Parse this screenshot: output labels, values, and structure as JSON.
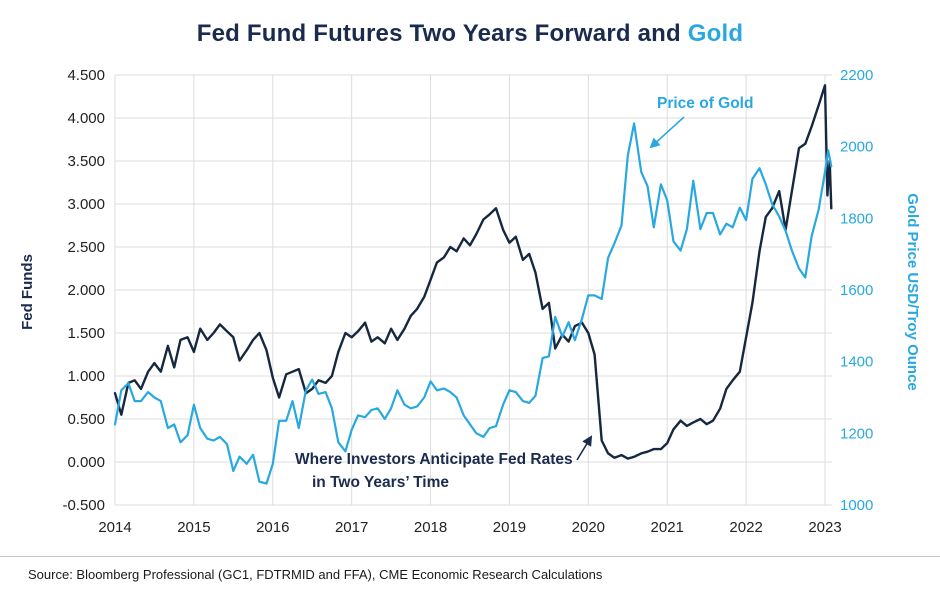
{
  "title": {
    "main": "Fed Fund Futures Two Years Forward and",
    "accent": "Gold"
  },
  "colors": {
    "navy": "#1B2B4D",
    "cyan": "#29A8E0",
    "line_navy": "#16283F",
    "grid": "#DCDCDC",
    "text": "#222222",
    "source_text": "#1A1A1A",
    "divider": "#C9C9C9"
  },
  "source": "Source: Bloomberg Professional (GC1, FDTRMID and FFA), CME Economic Research Calculations",
  "chart_data": {
    "type": "line",
    "title": "Fed Fund Futures Two Years Forward and Gold",
    "grid": true,
    "left_axis": {
      "label": "Fed Funds",
      "min": -0.5,
      "max": 4.5,
      "ticks": [
        "4.500",
        "4.000",
        "3.500",
        "3.000",
        "2.500",
        "2.000",
        "1.500",
        "1.000",
        "0.500",
        "0.000",
        "-0.500"
      ]
    },
    "right_axis": {
      "label": "Gold Price USD/Troy Ounce",
      "min": 1000,
      "max": 2200,
      "ticks": [
        "2200",
        "2000",
        "1800",
        "1600",
        "1400",
        "1200",
        "1000"
      ]
    },
    "x_axis": {
      "min": 2014,
      "max": 2023.1,
      "ticks": [
        "2014",
        "2015",
        "2016",
        "2017",
        "2018",
        "2019",
        "2020",
        "2021",
        "2022",
        "2023"
      ]
    },
    "series": [
      {
        "name": "Fed Fund Futures Two Years Forward (Where Investors Anticipate Fed Rates in Two Years' Time)",
        "axis": "left",
        "color_key": "line_navy",
        "points": [
          [
            2014.0,
            0.8
          ],
          [
            2014.08,
            0.55
          ],
          [
            2014.17,
            0.92
          ],
          [
            2014.25,
            0.95
          ],
          [
            2014.33,
            0.85
          ],
          [
            2014.42,
            1.05
          ],
          [
            2014.5,
            1.15
          ],
          [
            2014.58,
            1.05
          ],
          [
            2014.67,
            1.35
          ],
          [
            2014.75,
            1.1
          ],
          [
            2014.83,
            1.42
          ],
          [
            2014.92,
            1.45
          ],
          [
            2015.0,
            1.28
          ],
          [
            2015.08,
            1.55
          ],
          [
            2015.17,
            1.42
          ],
          [
            2015.25,
            1.5
          ],
          [
            2015.33,
            1.6
          ],
          [
            2015.42,
            1.52
          ],
          [
            2015.5,
            1.45
          ],
          [
            2015.58,
            1.18
          ],
          [
            2015.67,
            1.3
          ],
          [
            2015.75,
            1.42
          ],
          [
            2015.83,
            1.5
          ],
          [
            2015.92,
            1.3
          ],
          [
            2016.0,
            0.98
          ],
          [
            2016.08,
            0.75
          ],
          [
            2016.17,
            1.02
          ],
          [
            2016.25,
            1.05
          ],
          [
            2016.33,
            1.08
          ],
          [
            2016.42,
            0.8
          ],
          [
            2016.5,
            0.85
          ],
          [
            2016.58,
            0.95
          ],
          [
            2016.67,
            0.92
          ],
          [
            2016.75,
            1.0
          ],
          [
            2016.83,
            1.28
          ],
          [
            2016.92,
            1.5
          ],
          [
            2017.0,
            1.45
          ],
          [
            2017.08,
            1.52
          ],
          [
            2017.17,
            1.62
          ],
          [
            2017.25,
            1.4
          ],
          [
            2017.33,
            1.45
          ],
          [
            2017.42,
            1.38
          ],
          [
            2017.5,
            1.55
          ],
          [
            2017.58,
            1.42
          ],
          [
            2017.67,
            1.55
          ],
          [
            2017.75,
            1.7
          ],
          [
            2017.83,
            1.78
          ],
          [
            2017.92,
            1.92
          ],
          [
            2018.0,
            2.12
          ],
          [
            2018.08,
            2.32
          ],
          [
            2018.17,
            2.38
          ],
          [
            2018.25,
            2.5
          ],
          [
            2018.33,
            2.45
          ],
          [
            2018.42,
            2.6
          ],
          [
            2018.5,
            2.52
          ],
          [
            2018.58,
            2.65
          ],
          [
            2018.67,
            2.82
          ],
          [
            2018.75,
            2.88
          ],
          [
            2018.83,
            2.95
          ],
          [
            2018.92,
            2.7
          ],
          [
            2019.0,
            2.55
          ],
          [
            2019.08,
            2.62
          ],
          [
            2019.17,
            2.35
          ],
          [
            2019.25,
            2.42
          ],
          [
            2019.33,
            2.2
          ],
          [
            2019.42,
            1.78
          ],
          [
            2019.5,
            1.85
          ],
          [
            2019.58,
            1.32
          ],
          [
            2019.67,
            1.48
          ],
          [
            2019.75,
            1.4
          ],
          [
            2019.83,
            1.58
          ],
          [
            2019.92,
            1.62
          ],
          [
            2020.0,
            1.5
          ],
          [
            2020.08,
            1.25
          ],
          [
            2020.17,
            0.25
          ],
          [
            2020.25,
            0.1
          ],
          [
            2020.33,
            0.05
          ],
          [
            2020.42,
            0.08
          ],
          [
            2020.5,
            0.04
          ],
          [
            2020.58,
            0.06
          ],
          [
            2020.67,
            0.1
          ],
          [
            2020.75,
            0.12
          ],
          [
            2020.83,
            0.15
          ],
          [
            2020.92,
            0.15
          ],
          [
            2021.0,
            0.22
          ],
          [
            2021.08,
            0.38
          ],
          [
            2021.17,
            0.48
          ],
          [
            2021.25,
            0.42
          ],
          [
            2021.33,
            0.46
          ],
          [
            2021.42,
            0.5
          ],
          [
            2021.5,
            0.44
          ],
          [
            2021.58,
            0.48
          ],
          [
            2021.67,
            0.62
          ],
          [
            2021.75,
            0.85
          ],
          [
            2021.83,
            0.95
          ],
          [
            2021.92,
            1.05
          ],
          [
            2022.0,
            1.45
          ],
          [
            2022.08,
            1.85
          ],
          [
            2022.17,
            2.45
          ],
          [
            2022.25,
            2.85
          ],
          [
            2022.33,
            2.95
          ],
          [
            2022.42,
            3.15
          ],
          [
            2022.5,
            2.7
          ],
          [
            2022.58,
            3.15
          ],
          [
            2022.67,
            3.65
          ],
          [
            2022.75,
            3.7
          ],
          [
            2022.83,
            3.9
          ],
          [
            2022.92,
            4.15
          ],
          [
            2023.0,
            4.38
          ],
          [
            2023.03,
            3.1
          ],
          [
            2023.06,
            3.5
          ],
          [
            2023.08,
            2.95
          ]
        ]
      },
      {
        "name": "Price of Gold",
        "axis": "right",
        "color_key": "cyan",
        "points": [
          [
            2014.0,
            1225
          ],
          [
            2014.08,
            1320
          ],
          [
            2014.17,
            1340
          ],
          [
            2014.25,
            1290
          ],
          [
            2014.33,
            1290
          ],
          [
            2014.42,
            1315
          ],
          [
            2014.5,
            1300
          ],
          [
            2014.58,
            1290
          ],
          [
            2014.67,
            1215
          ],
          [
            2014.75,
            1225
          ],
          [
            2014.83,
            1175
          ],
          [
            2014.92,
            1195
          ],
          [
            2015.0,
            1280
          ],
          [
            2015.08,
            1215
          ],
          [
            2015.17,
            1185
          ],
          [
            2015.25,
            1180
          ],
          [
            2015.33,
            1190
          ],
          [
            2015.42,
            1170
          ],
          [
            2015.5,
            1095
          ],
          [
            2015.58,
            1135
          ],
          [
            2015.67,
            1115
          ],
          [
            2015.75,
            1140
          ],
          [
            2015.83,
            1065
          ],
          [
            2015.92,
            1060
          ],
          [
            2016.0,
            1115
          ],
          [
            2016.08,
            1235
          ],
          [
            2016.17,
            1235
          ],
          [
            2016.25,
            1290
          ],
          [
            2016.33,
            1215
          ],
          [
            2016.42,
            1320
          ],
          [
            2016.5,
            1350
          ],
          [
            2016.58,
            1310
          ],
          [
            2016.67,
            1315
          ],
          [
            2016.75,
            1270
          ],
          [
            2016.83,
            1175
          ],
          [
            2016.92,
            1150
          ],
          [
            2017.0,
            1210
          ],
          [
            2017.08,
            1250
          ],
          [
            2017.17,
            1245
          ],
          [
            2017.25,
            1265
          ],
          [
            2017.33,
            1270
          ],
          [
            2017.42,
            1240
          ],
          [
            2017.5,
            1270
          ],
          [
            2017.58,
            1320
          ],
          [
            2017.67,
            1280
          ],
          [
            2017.75,
            1270
          ],
          [
            2017.83,
            1275
          ],
          [
            2017.92,
            1300
          ],
          [
            2018.0,
            1345
          ],
          [
            2018.08,
            1320
          ],
          [
            2018.17,
            1325
          ],
          [
            2018.25,
            1315
          ],
          [
            2018.33,
            1300
          ],
          [
            2018.42,
            1250
          ],
          [
            2018.5,
            1225
          ],
          [
            2018.58,
            1200
          ],
          [
            2018.67,
            1190
          ],
          [
            2018.75,
            1215
          ],
          [
            2018.83,
            1220
          ],
          [
            2018.92,
            1280
          ],
          [
            2019.0,
            1320
          ],
          [
            2019.08,
            1315
          ],
          [
            2019.17,
            1290
          ],
          [
            2019.25,
            1285
          ],
          [
            2019.33,
            1305
          ],
          [
            2019.42,
            1410
          ],
          [
            2019.5,
            1415
          ],
          [
            2019.58,
            1525
          ],
          [
            2019.67,
            1470
          ],
          [
            2019.75,
            1510
          ],
          [
            2019.83,
            1460
          ],
          [
            2019.92,
            1520
          ],
          [
            2020.0,
            1585
          ],
          [
            2020.08,
            1585
          ],
          [
            2020.17,
            1575
          ],
          [
            2020.25,
            1690
          ],
          [
            2020.33,
            1730
          ],
          [
            2020.42,
            1780
          ],
          [
            2020.5,
            1975
          ],
          [
            2020.58,
            2065
          ],
          [
            2020.67,
            1930
          ],
          [
            2020.75,
            1890
          ],
          [
            2020.83,
            1775
          ],
          [
            2020.92,
            1895
          ],
          [
            2021.0,
            1850
          ],
          [
            2021.08,
            1735
          ],
          [
            2021.17,
            1710
          ],
          [
            2021.25,
            1770
          ],
          [
            2021.33,
            1905
          ],
          [
            2021.42,
            1770
          ],
          [
            2021.5,
            1815
          ],
          [
            2021.58,
            1815
          ],
          [
            2021.67,
            1755
          ],
          [
            2021.75,
            1785
          ],
          [
            2021.83,
            1775
          ],
          [
            2021.92,
            1830
          ],
          [
            2022.0,
            1795
          ],
          [
            2022.08,
            1910
          ],
          [
            2022.17,
            1940
          ],
          [
            2022.25,
            1895
          ],
          [
            2022.33,
            1840
          ],
          [
            2022.42,
            1805
          ],
          [
            2022.5,
            1765
          ],
          [
            2022.58,
            1710
          ],
          [
            2022.67,
            1660
          ],
          [
            2022.75,
            1635
          ],
          [
            2022.83,
            1750
          ],
          [
            2022.92,
            1825
          ],
          [
            2023.0,
            1930
          ],
          [
            2023.04,
            1990
          ],
          [
            2023.08,
            1945
          ]
        ]
      }
    ],
    "annotations": [
      {
        "id": "gold",
        "lines": [
          "Price of Gold"
        ],
        "color_key": "cyan",
        "x": 657,
        "y": 48,
        "indent": 0,
        "line_height": 20,
        "arrow": [
          684,
          57,
          651,
          87
        ]
      },
      {
        "id": "fed",
        "lines": [
          "Where Investors Anticipate Fed Rates",
          "in Two Years’ Time"
        ],
        "color_key": "navy",
        "x": 295,
        "y": 404,
        "indent": 17,
        "line_height": 23,
        "arrow": [
          577,
          400,
          591,
          377
        ]
      }
    ]
  }
}
